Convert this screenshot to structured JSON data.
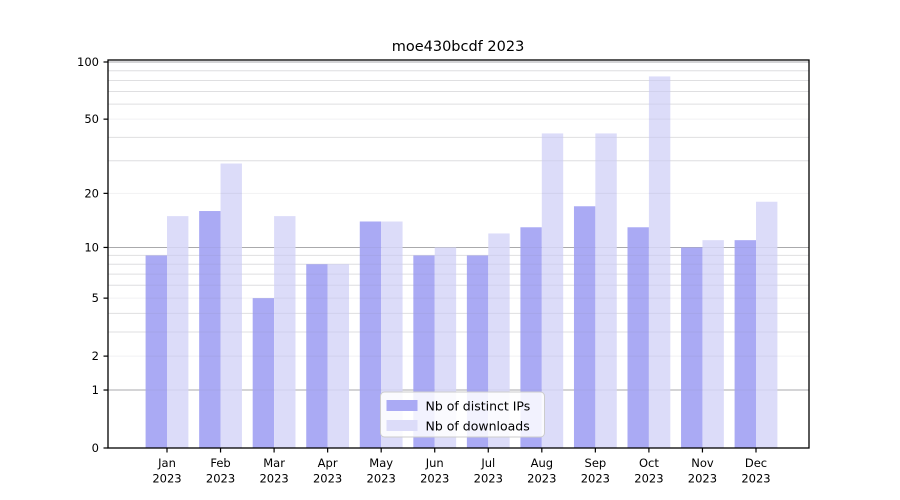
{
  "figure": {
    "title": "moe430bcdf 2023"
  },
  "chart_data": {
    "type": "bar",
    "title": "moe430bcdf 2023",
    "categories": [
      "Jan",
      "Feb",
      "Mar",
      "Apr",
      "May",
      "Jun",
      "Jul",
      "Aug",
      "Sep",
      "Oct",
      "Nov",
      "Dec"
    ],
    "year": "2023",
    "series": [
      {
        "name": "Nb of distinct IPs",
        "color": "#aaaaf4",
        "values": [
          9,
          16,
          5,
          8,
          14,
          9,
          9,
          13,
          17,
          13,
          10,
          11
        ]
      },
      {
        "name": "Nb of downloads",
        "color": "#dcdcf9",
        "values": [
          15,
          29,
          15,
          8,
          14,
          10,
          12,
          42,
          42,
          84,
          11,
          18
        ]
      }
    ],
    "xlabel": "",
    "ylabel": "",
    "y_axis": {
      "scale": "log1p",
      "tick_values": [
        0,
        1,
        2,
        5,
        10,
        20,
        50,
        100
      ],
      "tick_labels": [
        "0",
        "1",
        "2",
        "5",
        "10",
        "20",
        "50",
        "100"
      ],
      "ylim": [
        0,
        100
      ],
      "major_grid_values": [
        1,
        10,
        100
      ],
      "minor_grid_values": [
        3,
        4,
        6,
        7,
        8,
        9,
        30,
        40,
        60,
        70,
        80,
        90
      ]
    },
    "grid": {
      "major": true,
      "minor": true
    },
    "legend": {
      "position": "lower center inside",
      "entries": [
        "Nb of distinct IPs",
        "Nb of downloads"
      ]
    },
    "colors": {
      "bar_distinct_ips": "#aaaaf4",
      "bar_downloads": "#dcdcf9",
      "grid_major": "#b0b0b0",
      "grid_minor": "#ebebeb",
      "spine": "#000000",
      "legend_border": "#cccccc",
      "legend_bg": "#ffffff"
    }
  }
}
